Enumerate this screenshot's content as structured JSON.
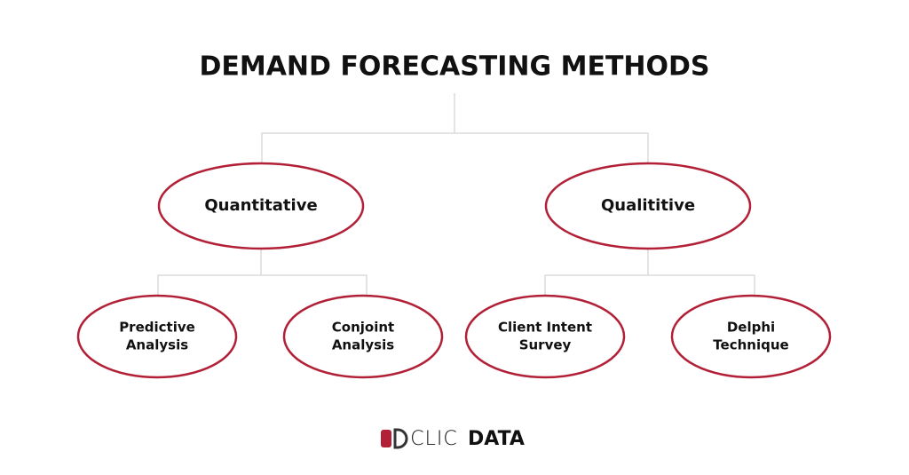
{
  "header": {
    "title": "DEMAND FORECASTING METHODS"
  },
  "nodes": [
    {
      "lines": [
        "Quantitative"
      ]
    },
    {
      "lines": [
        "Qualititive"
      ]
    },
    {
      "lines": [
        "Predictive",
        "Analysis"
      ]
    },
    {
      "lines": [
        "Conjoint",
        "Analysis"
      ]
    },
    {
      "lines": [
        "Client Intent",
        "Survey"
      ]
    },
    {
      "lines": [
        "Delphi",
        "Technique"
      ]
    }
  ],
  "logo": {
    "light": "CLIC",
    "bold": "DATA"
  }
}
